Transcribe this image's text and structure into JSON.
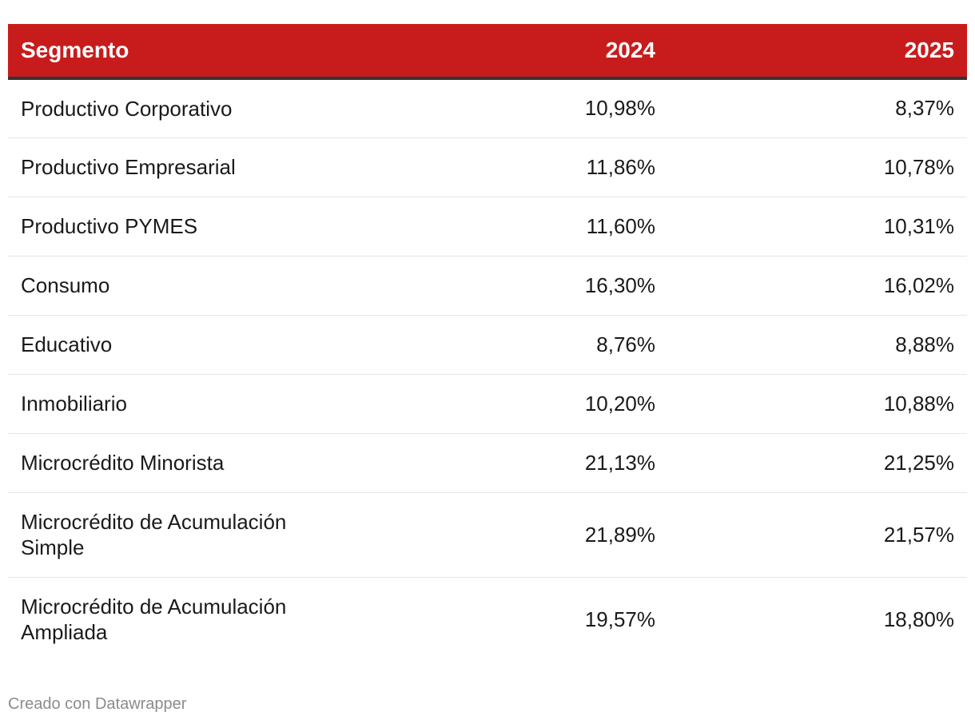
{
  "chart_data": {
    "type": "table",
    "columns": [
      "Segmento",
      "2024",
      "2025"
    ],
    "rows": [
      {
        "segment": "Productivo Corporativo",
        "y2024": "10,98%",
        "y2025": "8,37%"
      },
      {
        "segment": "Productivo Empresarial",
        "y2024": "11,86%",
        "y2025": "10,78%"
      },
      {
        "segment": "Productivo PYMES",
        "y2024": "11,60%",
        "y2025": "10,31%"
      },
      {
        "segment": "Consumo",
        "y2024": "16,30%",
        "y2025": "16,02%"
      },
      {
        "segment": "Educativo",
        "y2024": "8,76%",
        "y2025": "8,88%"
      },
      {
        "segment": "Inmobiliario",
        "y2024": "10,20%",
        "y2025": "10,88%"
      },
      {
        "segment": "Microcrédito Minorista",
        "y2024": "21,13%",
        "y2025": "21,25%"
      },
      {
        "segment": "Microcrédito de Acumulación Simple",
        "y2024": "21,89%",
        "y2025": "21,57%"
      },
      {
        "segment": "Microcrédito de Acumulación Ampliada",
        "y2024": "19,57%",
        "y2025": "18,80%"
      }
    ],
    "header_color": "#c81c1c"
  },
  "footer": {
    "credit": "Creado con Datawrapper"
  }
}
